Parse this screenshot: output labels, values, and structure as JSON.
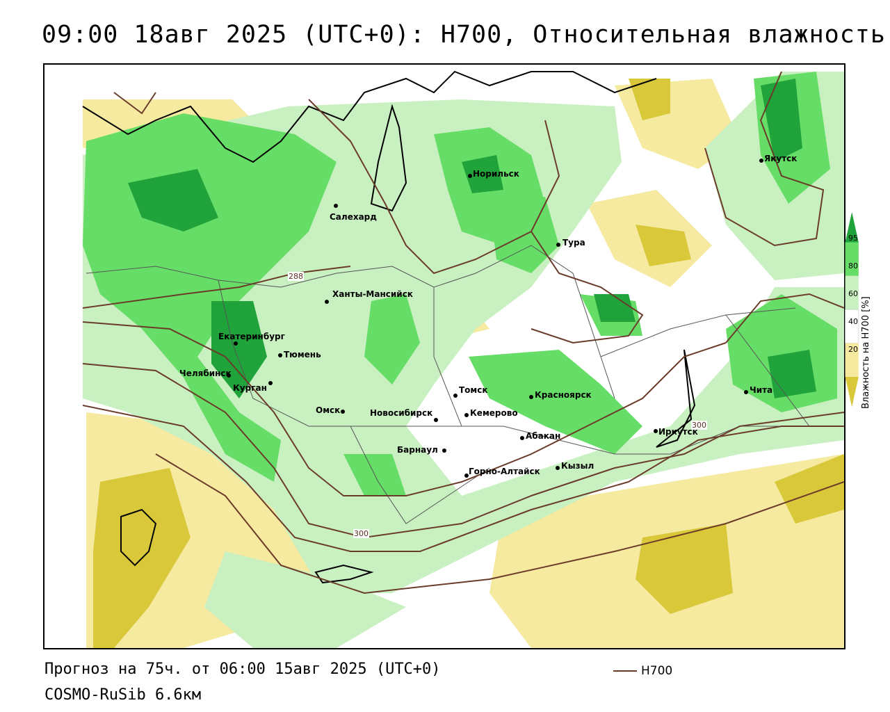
{
  "title": "09:00 18авг 2025 (UTC+0): H700, Относительная влажность",
  "forecast": "Прогноз на 75ч. от 06:00 15авг 2025 (UTC+0)",
  "model": "COSMO-RuSib 6.6км",
  "legend": {
    "line_label": "H700",
    "line_color": "#6b3b2a"
  },
  "colorbar": {
    "title": "Влажность на H700 [%]",
    "ticks": [
      "95",
      "80",
      "60",
      "40",
      "20"
    ],
    "colors": {
      "very_dry": "#d9c83a",
      "dry": "#f5eaa0",
      "neutral": "#ffffff",
      "moist": "#c9f0c0",
      "wet": "#66dd66",
      "very_wet": "#1fa33a"
    }
  },
  "isolines": [
    "288",
    "300",
    "300"
  ],
  "cities": [
    {
      "name": "Норильск"
    },
    {
      "name": "Якутск"
    },
    {
      "name": "Салехард"
    },
    {
      "name": "Тура"
    },
    {
      "name": "Ханты-Мансийск"
    },
    {
      "name": "Екатеринбург"
    },
    {
      "name": "Тюмень"
    },
    {
      "name": "Челябинск"
    },
    {
      "name": "Курган"
    },
    {
      "name": "Омск"
    },
    {
      "name": "Новосибирск"
    },
    {
      "name": "Томск"
    },
    {
      "name": "Кемерово"
    },
    {
      "name": "Красноярск"
    },
    {
      "name": "Барнаул"
    },
    {
      "name": "Абакан"
    },
    {
      "name": "Иркутск"
    },
    {
      "name": "Горно-Алтайск"
    },
    {
      "name": "Кызыл"
    },
    {
      "name": "Чита"
    }
  ]
}
